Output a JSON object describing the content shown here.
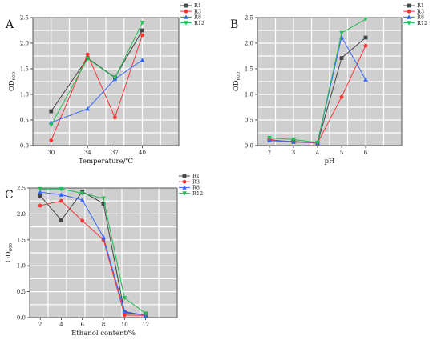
{
  "chart_data": [
    {
      "type": "line",
      "panel": "A",
      "xlabel": "Temperature/℃",
      "ylabel": "OD",
      "ylabel_sub": "600",
      "x": [
        30,
        34,
        37,
        40
      ],
      "xticks": [
        "30",
        "34",
        "37",
        "40"
      ],
      "xlim": [
        28,
        44
      ],
      "ylim": [
        0,
        2.5
      ],
      "yticks": [
        "0.0",
        "0.5",
        "1.0",
        "1.5",
        "2.0",
        "2.5"
      ],
      "grid": true,
      "legend": "top-right",
      "series": [
        {
          "name": "R1",
          "color": "#444444",
          "marker": "square",
          "values": [
            0.67,
            1.71,
            1.33,
            2.25
          ]
        },
        {
          "name": "R3",
          "color": "#ff3333",
          "marker": "circle",
          "values": [
            0.1,
            1.78,
            0.55,
            2.16
          ]
        },
        {
          "name": "R8",
          "color": "#3366ff",
          "marker": "triangle-up",
          "values": [
            0.45,
            0.72,
            1.3,
            1.67
          ]
        },
        {
          "name": "R12",
          "color": "#22bb55",
          "marker": "triangle-down",
          "values": [
            0.4,
            1.7,
            1.32,
            2.4
          ]
        }
      ]
    },
    {
      "type": "line",
      "panel": "B",
      "xlabel": "pH",
      "ylabel": "OD",
      "ylabel_sub": "600",
      "x": [
        2,
        3,
        4,
        5,
        6
      ],
      "xticks": [
        "2",
        "3",
        "4",
        "5",
        "6"
      ],
      "xlim": [
        1.5,
        7.5
      ],
      "ylim": [
        0,
        2.5
      ],
      "yticks": [
        "0.0",
        "0.5",
        "1.0",
        "1.5",
        "2.0",
        "2.5"
      ],
      "grid": true,
      "legend": "top-right",
      "series": [
        {
          "name": "R1",
          "color": "#444444",
          "marker": "square",
          "values": [
            0.1,
            0.08,
            0.05,
            1.71,
            2.11
          ]
        },
        {
          "name": "R3",
          "color": "#ff3333",
          "marker": "circle",
          "values": [
            0.12,
            0.07,
            0.05,
            0.95,
            1.95
          ]
        },
        {
          "name": "R8",
          "color": "#3366ff",
          "marker": "triangle-up",
          "values": [
            0.1,
            0.07,
            0.06,
            2.12,
            1.29
          ]
        },
        {
          "name": "R12",
          "color": "#22bb55",
          "marker": "triangle-down",
          "values": [
            0.15,
            0.12,
            0.06,
            2.2,
            2.47
          ]
        }
      ]
    },
    {
      "type": "line",
      "panel": "C",
      "xlabel": "Ethanol content/%",
      "ylabel": "OD",
      "ylabel_sub": "600",
      "x": [
        2,
        4,
        6,
        8,
        10,
        12
      ],
      "xticks": [
        "2",
        "4",
        "6",
        "8",
        "10",
        "12"
      ],
      "xlim": [
        1,
        15
      ],
      "ylim": [
        0,
        2.5
      ],
      "yticks": [
        "0.0",
        "0.5",
        "1.0",
        "1.5",
        "2.0",
        "2.5"
      ],
      "grid": true,
      "legend": "top-right",
      "series": [
        {
          "name": "R1",
          "color": "#444444",
          "marker": "square",
          "values": [
            2.35,
            1.88,
            2.43,
            2.2,
            0.1,
            0.05
          ]
        },
        {
          "name": "R3",
          "color": "#ff3333",
          "marker": "circle",
          "values": [
            2.16,
            2.25,
            1.87,
            1.5,
            0.05,
            0.04
          ]
        },
        {
          "name": "R8",
          "color": "#3366ff",
          "marker": "triangle-up",
          "values": [
            2.42,
            2.37,
            2.27,
            1.55,
            0.12,
            0.04
          ]
        },
        {
          "name": "R12",
          "color": "#22bb55",
          "marker": "triangle-down",
          "values": [
            2.48,
            2.48,
            2.4,
            2.3,
            0.38,
            0.08
          ]
        }
      ]
    }
  ]
}
